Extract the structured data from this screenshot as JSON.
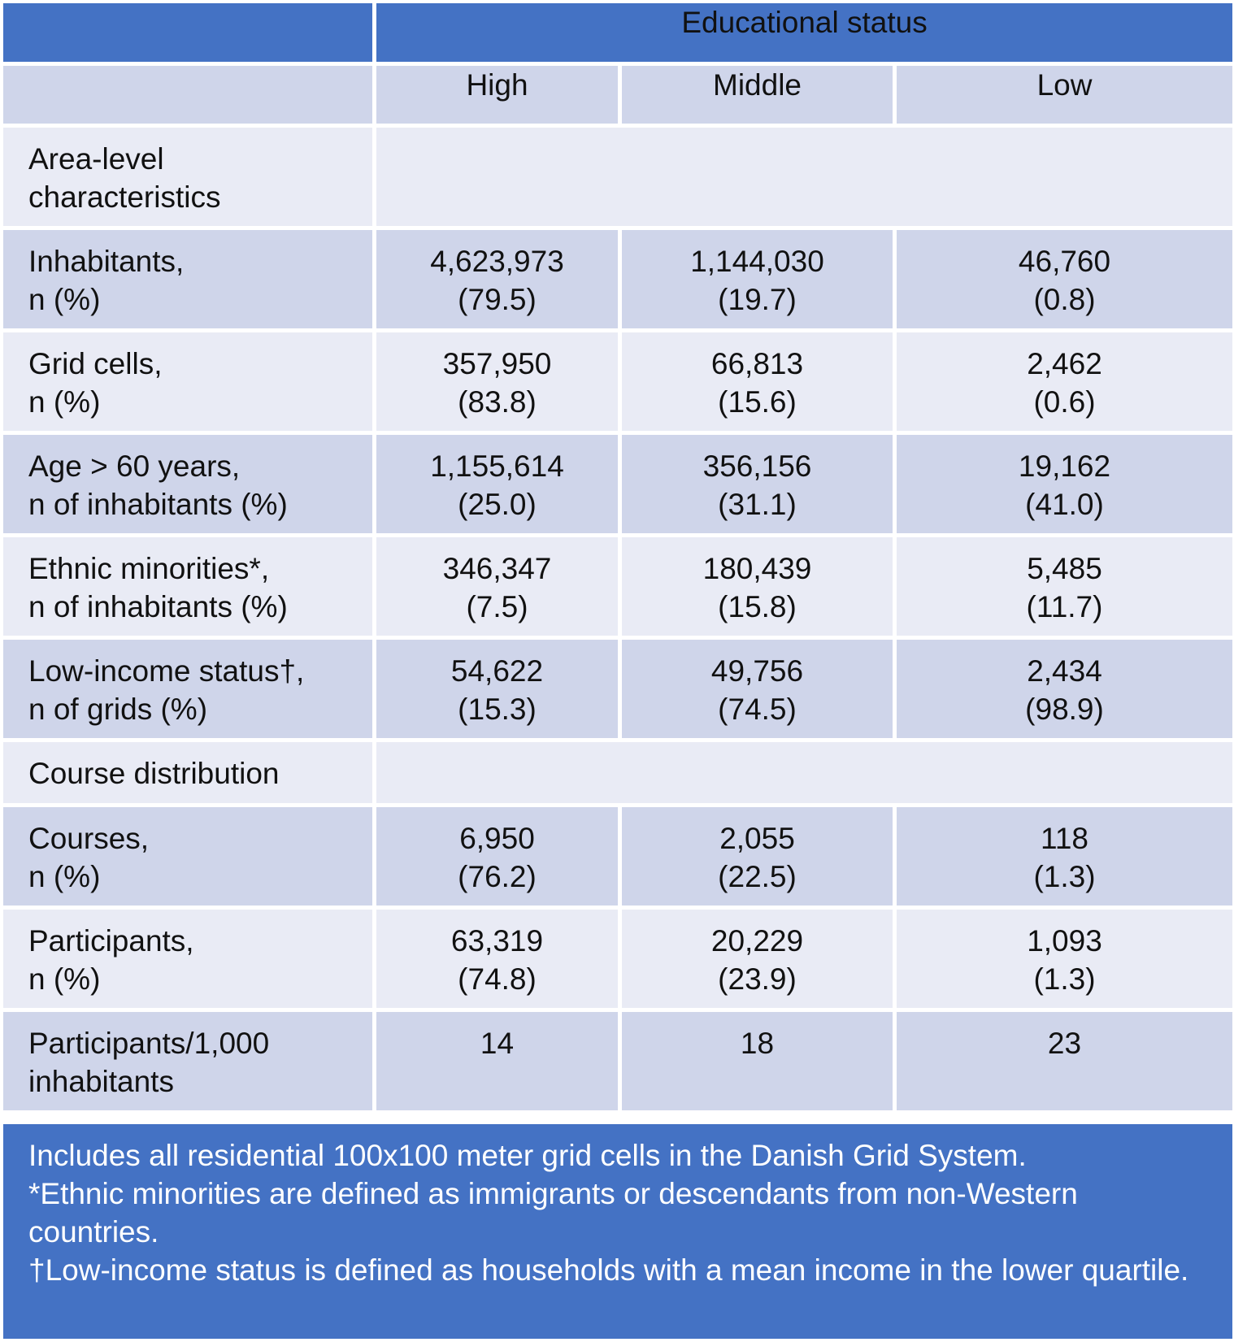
{
  "header": {
    "group_label": "Educational status",
    "columns": [
      "High",
      "Middle",
      "Low"
    ]
  },
  "sections": [
    {
      "title_line1": "Area-level",
      "title_line2": "characteristics",
      "rows": [
        {
          "label1": "Inhabitants,",
          "label2": "n (%)",
          "high": [
            "4,623,973",
            "(79.5)"
          ],
          "middle": [
            "1,144,030",
            "(19.7)"
          ],
          "low": [
            "46,760",
            "(0.8)"
          ]
        },
        {
          "label1": "Grid cells,",
          "label2": "n (%)",
          "high": [
            "357,950",
            "(83.8)"
          ],
          "middle": [
            "66,813",
            "(15.6)"
          ],
          "low": [
            "2,462",
            "(0.6)"
          ]
        },
        {
          "label1": "Age > 60 years,",
          "label2": "n of inhabitants (%)",
          "high": [
            "1,155,614",
            "(25.0)"
          ],
          "middle": [
            "356,156",
            "(31.1)"
          ],
          "low": [
            "19,162",
            "(41.0)"
          ]
        },
        {
          "label1": "Ethnic minorities*,",
          "label2": "n of inhabitants (%)",
          "high": [
            "346,347",
            "(7.5)"
          ],
          "middle": [
            "180,439",
            "(15.8)"
          ],
          "low": [
            "5,485",
            "(11.7)"
          ]
        },
        {
          "label1": "Low-income status†,",
          "label2": "n of grids (%)",
          "high": [
            "54,622",
            "(15.3)"
          ],
          "middle": [
            "49,756",
            "(74.5)"
          ],
          "low": [
            "2,434",
            "(98.9)"
          ]
        }
      ]
    },
    {
      "title_line1": "Course distribution",
      "title_line2": "",
      "rows": [
        {
          "label1": "Courses,",
          "label2": "n (%)",
          "high": [
            "6,950",
            "(76.2)"
          ],
          "middle": [
            "2,055",
            "(22.5)"
          ],
          "low": [
            "118",
            "(1.3)"
          ]
        },
        {
          "label1": "Participants,",
          "label2": "n (%)",
          "high": [
            "63,319",
            "(74.8)"
          ],
          "middle": [
            "20,229",
            "(23.9)"
          ],
          "low": [
            "1,093",
            "(1.3)"
          ]
        },
        {
          "label1": "Participants/1,000",
          "label2": "inhabitants",
          "high": [
            "14",
            ""
          ],
          "middle": [
            "18",
            ""
          ],
          "low": [
            "23",
            ""
          ]
        }
      ]
    }
  ],
  "notes": [
    "Includes all residential 100x100 meter grid cells in the Danish Grid System.",
    "*Ethnic minorities are defined as immigrants or descendants from non-Western countries.",
    "†Low-income status is defined as households with a mean income in the lower quartile."
  ],
  "colors": {
    "header_blue": "#4472c4",
    "row_dark": "#cfd5ea",
    "row_light": "#e9ebf5"
  }
}
